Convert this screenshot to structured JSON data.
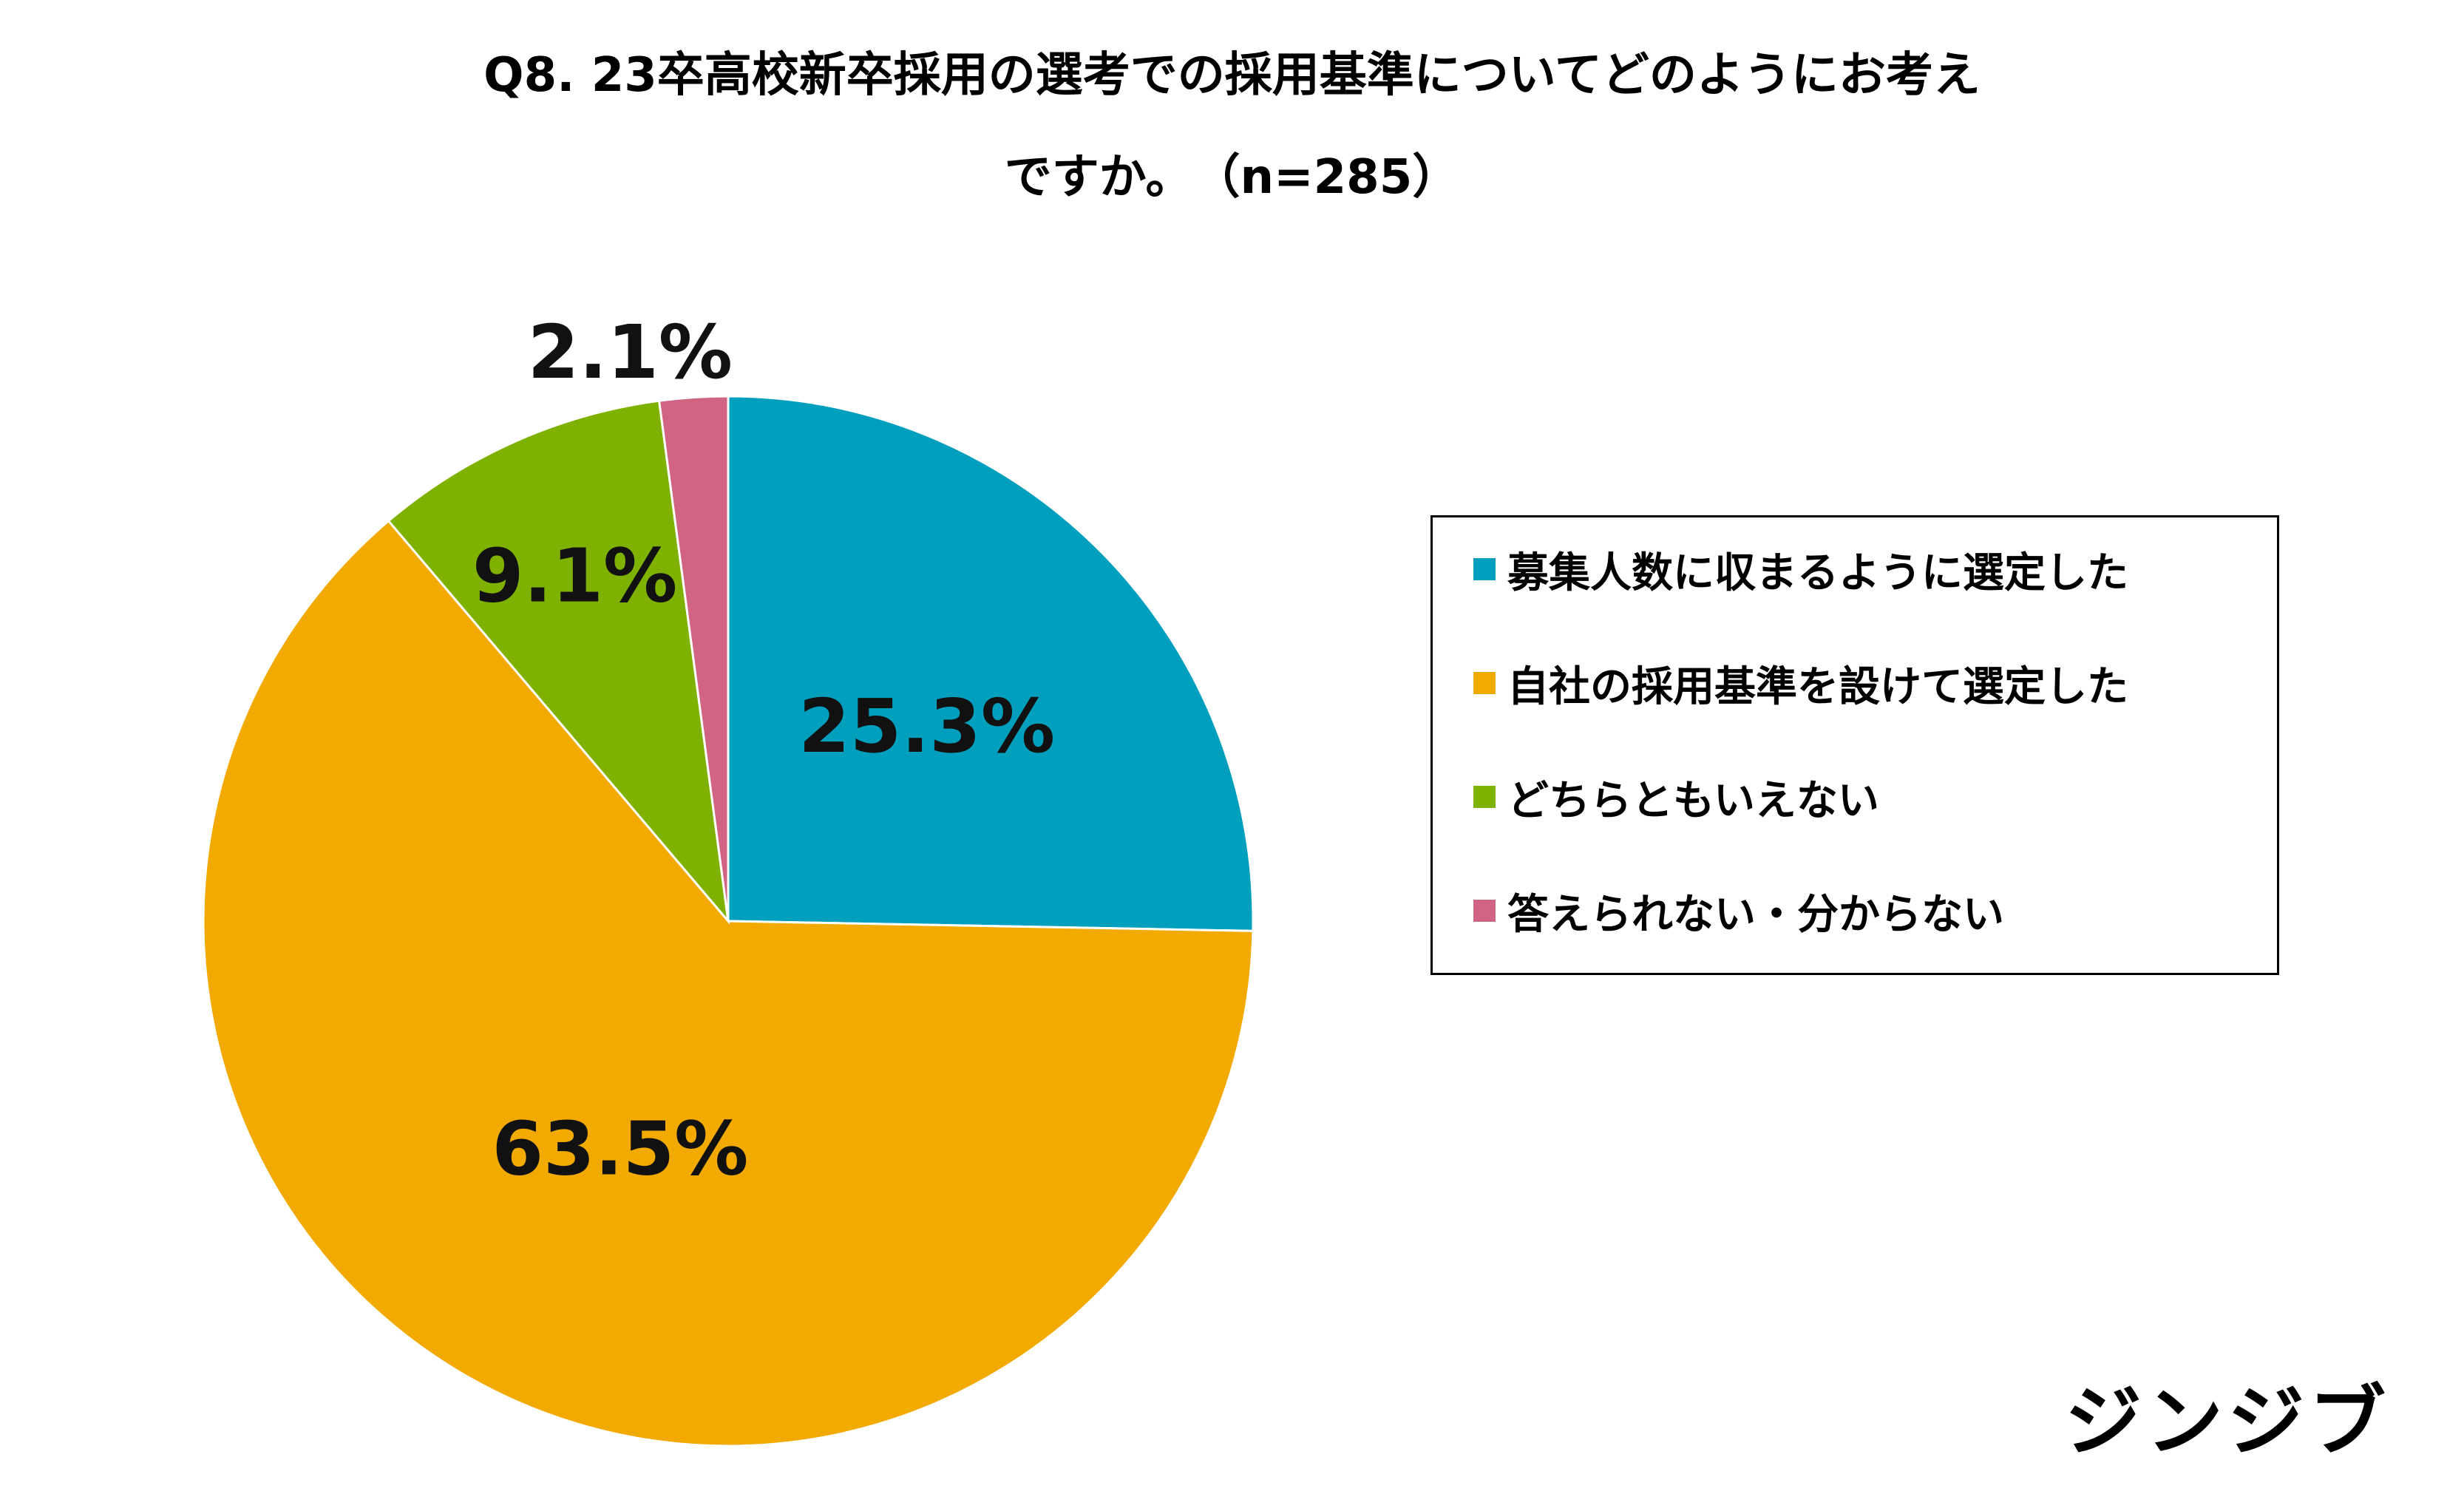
{
  "chart_data": {
    "type": "pie",
    "title": "Q8. 23卒高校新卒採用の選考での採用基準についてどのようにお考え",
    "subtitle": "ですか。　（n=285）",
    "start_angle_deg": 0,
    "direction": "clockwise",
    "legend_position": "right",
    "slices": [
      {
        "label": "募集人数に収まるように選定した",
        "value": 25.3,
        "display": "25.3%",
        "color": "#009FBE"
      },
      {
        "label": "自社の採用基準を設けて選定した",
        "value": 63.5,
        "display": "63.5%",
        "color": "#F2A900"
      },
      {
        "label": "どちらともいえない",
        "value": 9.1,
        "display": "9.1%",
        "color": "#7FB100"
      },
      {
        "label": "答えられない・分からない",
        "value": 2.1,
        "display": "2.1%",
        "color": "#D16383"
      }
    ]
  },
  "logo": {
    "text": "ジンジブ"
  }
}
